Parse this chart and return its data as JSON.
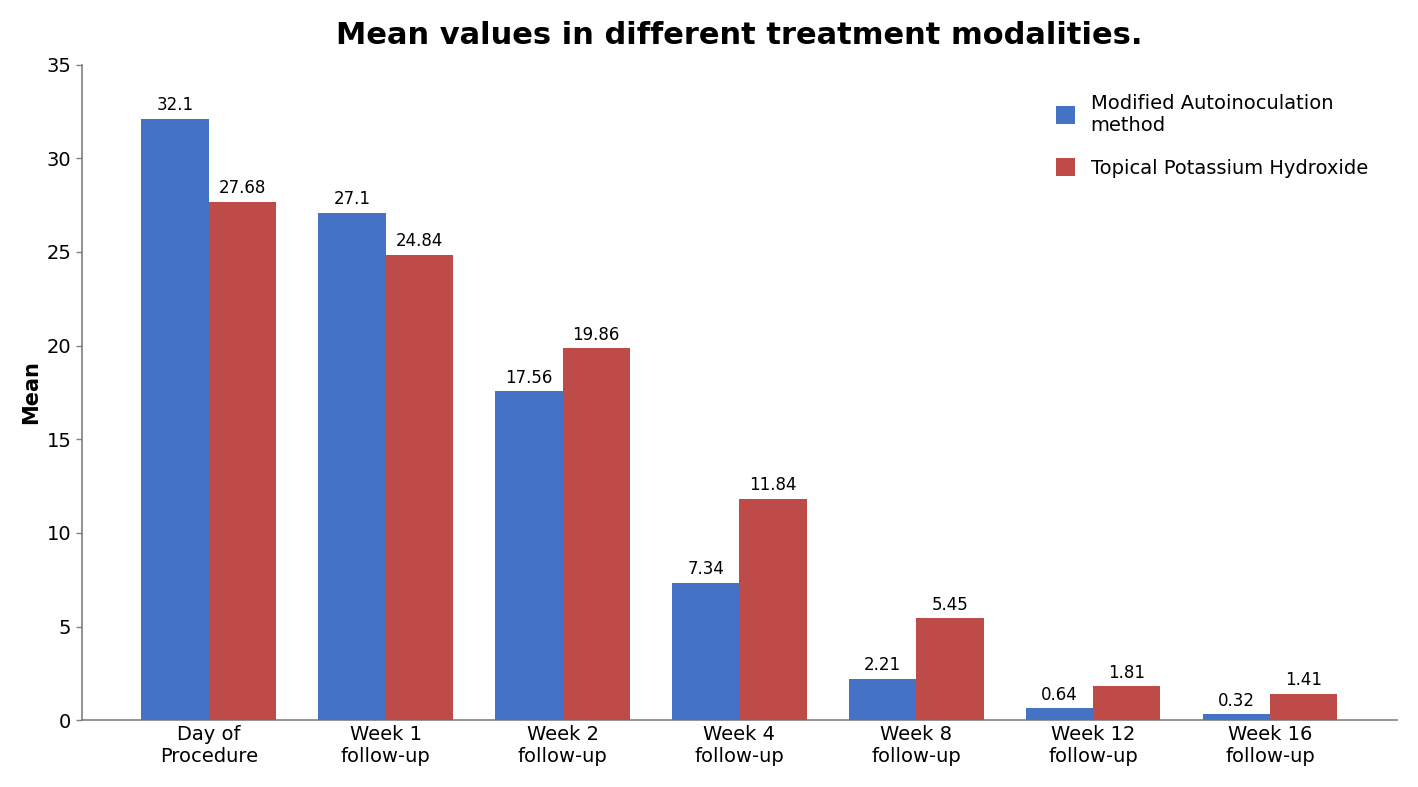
{
  "title": "Mean values in different treatment modalities.",
  "ylabel": "Mean",
  "categories": [
    "Day of\nProcedure",
    "Week 1\nfollow-up",
    "Week 2\nfollow-up",
    "Week 4\nfollow-up",
    "Week 8\nfollow-up",
    "Week 12\nfollow-up",
    "Week 16\nfollow-up"
  ],
  "blue_values": [
    32.1,
    27.1,
    17.56,
    7.34,
    2.21,
    0.64,
    0.32
  ],
  "red_values": [
    27.68,
    24.84,
    19.86,
    11.84,
    5.45,
    1.81,
    1.41
  ],
  "blue_color": "#4472C4",
  "red_color": "#BE4B48",
  "blue_label": "Modified Autoinoculation\nmethod",
  "red_label": "Topical Potassium Hydroxide",
  "ylim": [
    0,
    35
  ],
  "yticks": [
    0,
    5,
    10,
    15,
    20,
    25,
    30,
    35
  ],
  "title_fontsize": 22,
  "axis_label_fontsize": 15,
  "tick_fontsize": 14,
  "bar_label_fontsize": 12,
  "legend_fontsize": 14,
  "background_color": "#ffffff",
  "bar_width": 0.38,
  "spine_color": "#808080"
}
